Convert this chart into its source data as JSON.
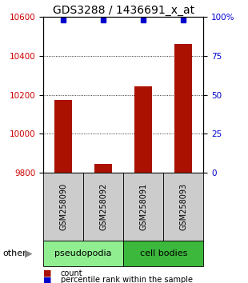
{
  "title": "GDS3288 / 1436691_x_at",
  "samples": [
    "GSM258090",
    "GSM258092",
    "GSM258091",
    "GSM258093"
  ],
  "group_colors": {
    "pseudopodia": "#90EE90",
    "cell bodies": "#3CB83C"
  },
  "bar_values": [
    10175,
    9845,
    10245,
    10460
  ],
  "ylim": [
    9800,
    10600
  ],
  "yticks_left": [
    9800,
    10000,
    10200,
    10400,
    10600
  ],
  "yticks_right": [
    0,
    25,
    50,
    75,
    100
  ],
  "ylabel_left_color": "#CC0000",
  "ylabel_right_color": "#0000CC",
  "bar_color": "#AA1100",
  "percentile_color": "#0000CC",
  "title_fontsize": 10,
  "tick_fontsize": 7.5,
  "sample_fontsize": 7,
  "legend_red_label": "count",
  "legend_blue_label": "percentile rank within the sample",
  "other_label": "other"
}
